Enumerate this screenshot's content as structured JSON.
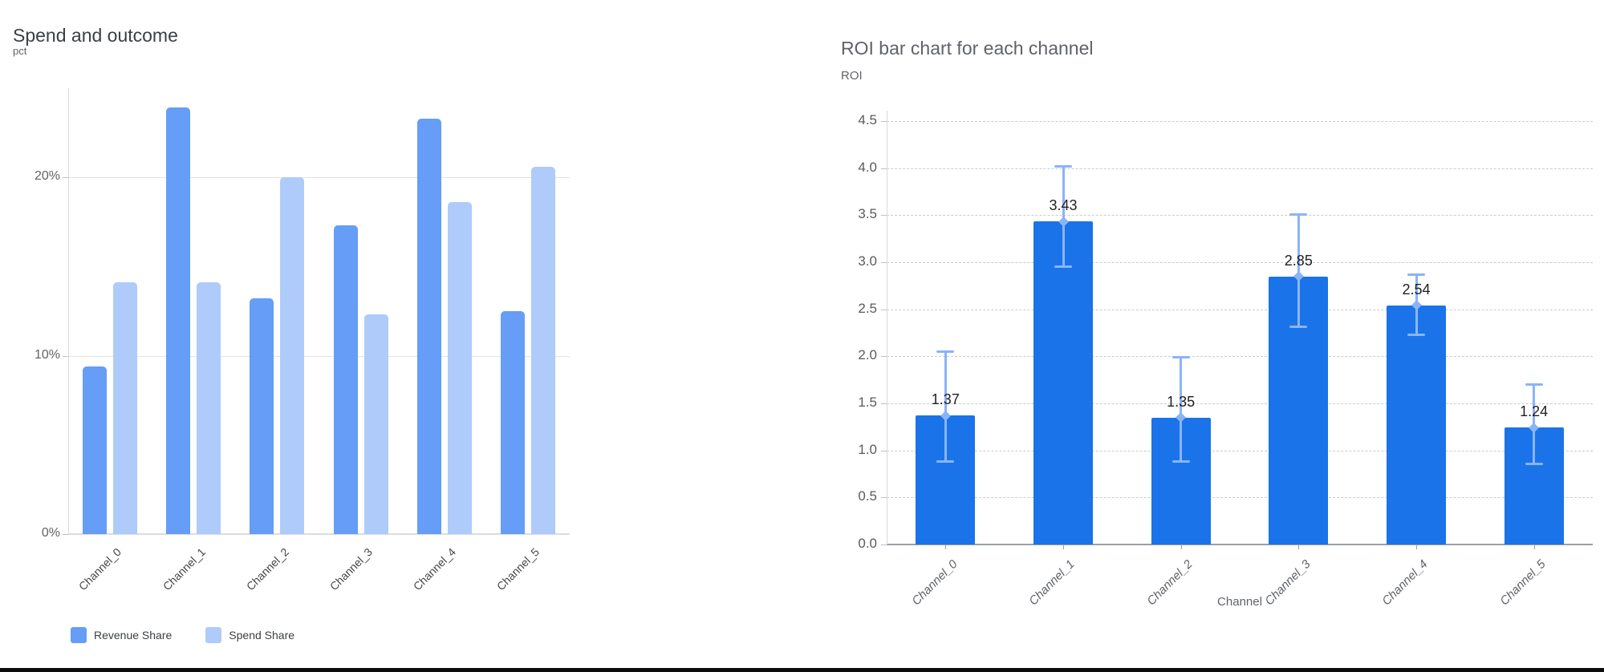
{
  "chart_data": [
    {
      "type": "bar",
      "title": "Spend and outcome",
      "ylabel": "pct",
      "xlabel": "",
      "categories": [
        "Channel_0",
        "Channel_1",
        "Channel_2",
        "Channel_3",
        "Channel_4",
        "Channel_5"
      ],
      "series": [
        {
          "name": "Revenue Share",
          "color": "#669df6",
          "values": [
            9.4,
            23.9,
            13.2,
            17.3,
            23.3,
            12.5
          ]
        },
        {
          "name": "Spend Share",
          "color": "#aecbfa",
          "values": [
            14.1,
            14.1,
            20.0,
            12.3,
            18.6,
            20.6
          ]
        }
      ],
      "y_ticks": [
        {
          "value": 0,
          "label": "0%"
        },
        {
          "value": 10,
          "label": "10%"
        },
        {
          "value": 20,
          "label": "20%"
        }
      ],
      "ylim": [
        0,
        25
      ],
      "grid": "solid",
      "legend_position": "bottom"
    },
    {
      "type": "bar",
      "title": "ROI bar chart for each channel",
      "ylabel": "ROI",
      "xlabel": "Channel",
      "categories": [
        "Channel_0",
        "Channel_1",
        "Channel_2",
        "Channel_3",
        "Channel_4",
        "Channel_5"
      ],
      "values": [
        1.37,
        3.43,
        1.35,
        2.85,
        2.54,
        1.24
      ],
      "value_labels": [
        "1.37",
        "3.43",
        "1.35",
        "2.85",
        "2.54",
        "1.24"
      ],
      "error_low": [
        0.88,
        2.95,
        0.88,
        2.31,
        2.22,
        0.85
      ],
      "error_high": [
        2.05,
        4.02,
        1.99,
        3.51,
        2.87,
        1.7
      ],
      "bar_color": "#1a73e8",
      "error_color": "#8ab4f8",
      "y_ticks": [
        {
          "value": 0.0,
          "label": "0.0"
        },
        {
          "value": 0.5,
          "label": "0.5"
        },
        {
          "value": 1.0,
          "label": "1.0"
        },
        {
          "value": 1.5,
          "label": "1.5"
        },
        {
          "value": 2.0,
          "label": "2.0"
        },
        {
          "value": 2.5,
          "label": "2.5"
        },
        {
          "value": 3.0,
          "label": "3.0"
        },
        {
          "value": 3.5,
          "label": "3.5"
        },
        {
          "value": 4.0,
          "label": "4.0"
        },
        {
          "value": 4.5,
          "label": "4.5"
        }
      ],
      "ylim": [
        0,
        4.61
      ],
      "grid": "dashed",
      "legend_position": "none"
    }
  ]
}
